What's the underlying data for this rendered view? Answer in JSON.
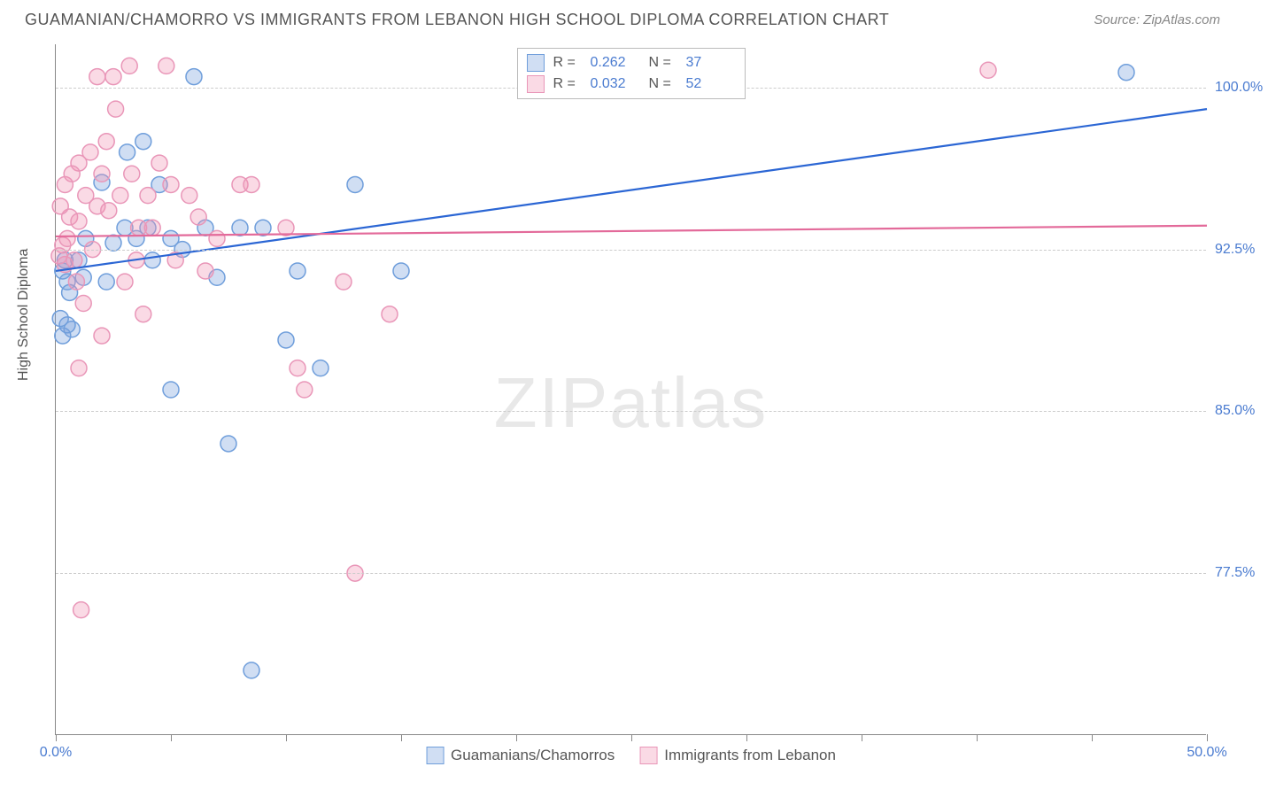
{
  "title": "GUAMANIAN/CHAMORRO VS IMMIGRANTS FROM LEBANON HIGH SCHOOL DIPLOMA CORRELATION CHART",
  "source_label": "Source: ",
  "source_site": "ZipAtlas.com",
  "ylabel": "High School Diploma",
  "watermark_a": "ZIP",
  "watermark_b": "atlas",
  "chart": {
    "type": "scatter",
    "xlim": [
      0,
      50
    ],
    "ylim": [
      70,
      102
    ],
    "xtick_positions": [
      0,
      5,
      10,
      15,
      20,
      25,
      30,
      35,
      40,
      45,
      50
    ],
    "xtick_labels": {
      "0": "0.0%",
      "50": "50.0%"
    },
    "ytick_positions": [
      77.5,
      85.0,
      92.5,
      100.0
    ],
    "ytick_labels": [
      "77.5%",
      "85.0%",
      "92.5%",
      "100.0%"
    ],
    "background_color": "#ffffff",
    "grid_color": "#cccccc",
    "axis_color": "#888888",
    "tick_label_color": "#4a7bd0",
    "marker_radius": 9,
    "marker_stroke_width": 1.5,
    "trend_line_width": 2.2,
    "series": [
      {
        "name": "Guamanians/Chamorros",
        "fill": "rgba(120,160,220,0.35)",
        "stroke": "#6f9edb",
        "trend_color": "#2b66d4",
        "R": "0.262",
        "N": "37",
        "trend": {
          "x1": 0,
          "y1": 91.5,
          "x2": 50,
          "y2": 99.0
        },
        "points": [
          [
            0.3,
            91.5
          ],
          [
            0.4,
            92.0
          ],
          [
            0.5,
            91.0
          ],
          [
            0.6,
            90.5
          ],
          [
            0.7,
            88.8
          ],
          [
            0.3,
            88.5
          ],
          [
            0.5,
            89.0
          ],
          [
            1.0,
            92.0
          ],
          [
            1.2,
            91.2
          ],
          [
            1.3,
            93.0
          ],
          [
            2.0,
            95.6
          ],
          [
            2.2,
            91.0
          ],
          [
            2.5,
            92.8
          ],
          [
            3.0,
            93.5
          ],
          [
            3.1,
            97.0
          ],
          [
            3.5,
            93.0
          ],
          [
            4.0,
            93.5
          ],
          [
            4.2,
            92.0
          ],
          [
            4.5,
            95.5
          ],
          [
            5.0,
            93.0
          ],
          [
            5.5,
            92.5
          ],
          [
            6.0,
            100.5
          ],
          [
            6.5,
            93.5
          ],
          [
            7.0,
            91.2
          ],
          [
            8.0,
            93.5
          ],
          [
            9.0,
            93.5
          ],
          [
            10.0,
            88.3
          ],
          [
            10.5,
            91.5
          ],
          [
            11.5,
            87.0
          ],
          [
            13.0,
            95.5
          ],
          [
            15.0,
            91.5
          ],
          [
            5.0,
            86.0
          ],
          [
            7.5,
            83.5
          ],
          [
            8.5,
            73.0
          ],
          [
            46.5,
            100.7
          ],
          [
            3.8,
            97.5
          ],
          [
            0.2,
            89.3
          ]
        ]
      },
      {
        "name": "Immigrants from Lebanon",
        "fill": "rgba(240,150,180,0.35)",
        "stroke": "#e996b8",
        "trend_color": "#e36a9a",
        "R": "0.032",
        "N": "52",
        "trend": {
          "x1": 0,
          "y1": 93.1,
          "x2": 50,
          "y2": 93.6
        },
        "points": [
          [
            0.3,
            92.7
          ],
          [
            0.4,
            91.8
          ],
          [
            0.5,
            93.0
          ],
          [
            0.6,
            94.0
          ],
          [
            0.8,
            92.0
          ],
          [
            0.9,
            91.0
          ],
          [
            1.0,
            93.8
          ],
          [
            1.0,
            96.5
          ],
          [
            1.2,
            90.0
          ],
          [
            1.3,
            95.0
          ],
          [
            1.5,
            97.0
          ],
          [
            1.6,
            92.5
          ],
          [
            1.8,
            94.5
          ],
          [
            1.8,
            100.5
          ],
          [
            2.0,
            96.0
          ],
          [
            2.0,
            88.5
          ],
          [
            2.2,
            97.5
          ],
          [
            2.3,
            94.3
          ],
          [
            2.5,
            100.5
          ],
          [
            2.8,
            95.0
          ],
          [
            3.0,
            91.0
          ],
          [
            3.2,
            101.0
          ],
          [
            3.3,
            96.0
          ],
          [
            3.5,
            92.0
          ],
          [
            3.8,
            89.5
          ],
          [
            4.0,
            95.0
          ],
          [
            4.2,
            93.5
          ],
          [
            4.5,
            96.5
          ],
          [
            4.8,
            101.0
          ],
          [
            5.0,
            95.5
          ],
          [
            5.8,
            95.0
          ],
          [
            6.2,
            94.0
          ],
          [
            6.5,
            91.5
          ],
          [
            7.0,
            93.0
          ],
          [
            8.0,
            95.5
          ],
          [
            8.5,
            95.5
          ],
          [
            10.0,
            93.5
          ],
          [
            10.5,
            87.0
          ],
          [
            10.8,
            86.0
          ],
          [
            12.5,
            91.0
          ],
          [
            13.0,
            77.5
          ],
          [
            14.5,
            89.5
          ],
          [
            1.0,
            87.0
          ],
          [
            0.2,
            94.5
          ],
          [
            0.4,
            95.5
          ],
          [
            0.7,
            96.0
          ],
          [
            1.1,
            75.8
          ],
          [
            2.6,
            99.0
          ],
          [
            3.6,
            93.5
          ],
          [
            5.2,
            92.0
          ],
          [
            40.5,
            100.8
          ],
          [
            0.15,
            92.2
          ]
        ]
      }
    ]
  },
  "legend_top": {
    "R_label": "R =",
    "N_label": "N ="
  },
  "legend_bottom": {
    "series1": "Guamanians/Chamorros",
    "series2": "Immigrants from Lebanon"
  }
}
